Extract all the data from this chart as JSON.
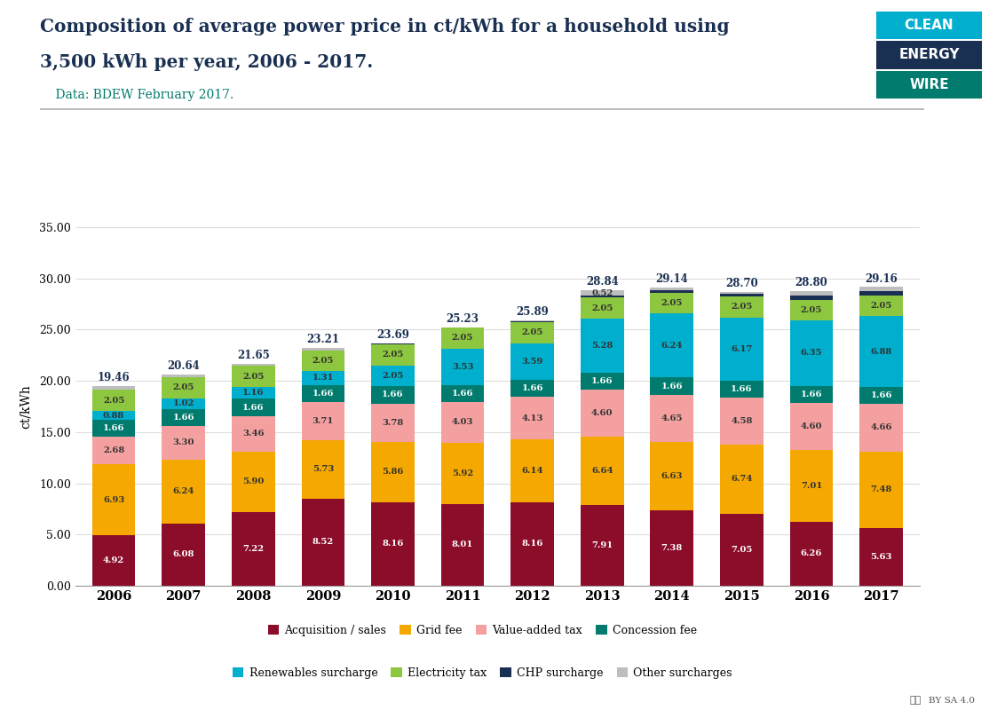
{
  "years": [
    "2006",
    "2007",
    "2008",
    "2009",
    "2010",
    "2011",
    "2012",
    "2013",
    "2014",
    "2015",
    "2016",
    "2017"
  ],
  "totals": [
    19.46,
    20.64,
    21.65,
    23.21,
    23.69,
    25.23,
    25.89,
    28.84,
    29.14,
    28.7,
    28.8,
    29.16
  ],
  "segments": {
    "Acquisition / sales": [
      4.92,
      6.08,
      7.22,
      8.52,
      8.16,
      8.01,
      8.16,
      7.91,
      7.38,
      7.05,
      6.26,
      5.63
    ],
    "Grid fee": [
      6.93,
      6.24,
      5.9,
      5.73,
      5.86,
      5.92,
      6.14,
      6.64,
      6.63,
      6.74,
      7.01,
      7.48
    ],
    "Value-added tax": [
      2.68,
      3.3,
      3.46,
      3.71,
      3.78,
      4.03,
      4.13,
      4.6,
      4.65,
      4.58,
      4.6,
      4.66
    ],
    "Concession fee": [
      1.66,
      1.66,
      1.66,
      1.66,
      1.66,
      1.66,
      1.66,
      1.66,
      1.66,
      1.66,
      1.66,
      1.66
    ],
    "Renewables surcharge": [
      0.88,
      1.02,
      1.16,
      1.31,
      2.05,
      3.53,
      3.59,
      5.28,
      6.24,
      6.17,
      6.35,
      6.88
    ],
    "Electricity tax": [
      2.05,
      2.05,
      2.05,
      2.05,
      2.05,
      2.05,
      2.05,
      2.05,
      2.05,
      2.05,
      2.05,
      2.05
    ],
    "CHP surcharge": [
      0.0,
      0.0,
      0.0,
      0.0,
      0.07,
      0.0,
      0.07,
      0.18,
      0.21,
      0.25,
      0.44,
      0.44
    ],
    "Other surcharges": [
      0.34,
      0.29,
      0.2,
      0.23,
      0.06,
      0.03,
      0.09,
      0.52,
      0.32,
      0.2,
      0.43,
      0.36
    ]
  },
  "segment_order": [
    "Acquisition / sales",
    "Grid fee",
    "Value-added tax",
    "Concession fee",
    "Renewables surcharge",
    "Electricity tax",
    "CHP surcharge",
    "Other surcharges"
  ],
  "colors": {
    "Acquisition / sales": "#8B0D2A",
    "Grid fee": "#F5A800",
    "Value-added tax": "#F4A0A0",
    "Concession fee": "#007B6E",
    "Renewables surcharge": "#00AECD",
    "Electricity tax": "#8DC63F",
    "CHP surcharge": "#1A3052",
    "Other surcharges": "#BEBEBE"
  },
  "label_text_colors": {
    "Acquisition / sales": "#FFFFFF",
    "Grid fee": "#333333",
    "Value-added tax": "#333333",
    "Concession fee": "#FFFFFF",
    "Renewables surcharge": "#333333",
    "Electricity tax": "#333333",
    "CHP surcharge": "#FFFFFF",
    "Other surcharges": "#333333"
  },
  "title_line1": "Composition of average power price in ct/kWh for a household using",
  "title_line2": "3,500 kWh per year, 2006 - 2017.",
  "subtitle": "    Data: BDEW February 2017.",
  "ylabel": "ct/kWh",
  "ylim": [
    0,
    35
  ],
  "yticks": [
    0.0,
    5.0,
    10.0,
    15.0,
    20.0,
    25.0,
    30.0,
    35.0
  ],
  "background_color": "#FFFFFF",
  "logo_words": [
    "CLEAN",
    "ENERGY",
    "WIRE"
  ],
  "logo_colors": [
    "#00AECD",
    "#1A3052",
    "#007B6E"
  ],
  "title_color": "#1A3052",
  "subtitle_color": "#007B6E",
  "total_label_color": "#1A3052",
  "grid_color": "#DDDDDD",
  "axis_color": "#999999"
}
